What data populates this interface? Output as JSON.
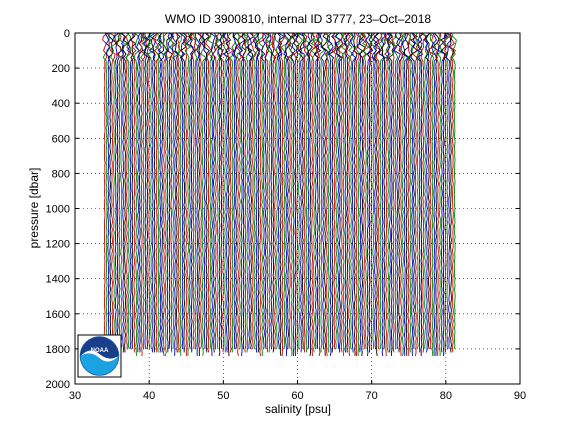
{
  "chart_data": {
    "type": "line",
    "title": "WMO ID 3900810, internal ID 3777, 23–Oct–2018",
    "xlabel": "salinity [psu]",
    "ylabel": "pressure [dbar]",
    "xlim": [
      30,
      90
    ],
    "ylim": [
      0,
      2000
    ],
    "y_reversed": true,
    "grid": "dotted",
    "x_ticks": [
      30,
      40,
      50,
      60,
      70,
      80,
      90
    ],
    "y_ticks": [
      0,
      200,
      400,
      600,
      800,
      1000,
      1200,
      1400,
      1600,
      1800,
      2000
    ],
    "profiles": {
      "count": 190,
      "first_offset_salinity": 34.0,
      "last_offset_salinity": 81.2,
      "offset_step": 0.25,
      "pressure_range": [
        0,
        1860
      ],
      "colors": [
        "#cc0000",
        "#008800",
        "#0000cc",
        "#000000"
      ]
    },
    "logo": {
      "text": "NOAA"
    }
  }
}
